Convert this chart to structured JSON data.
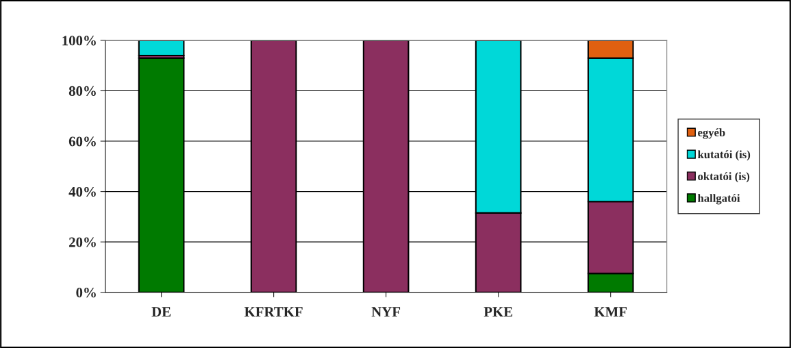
{
  "chart_data": {
    "type": "bar",
    "stacked": true,
    "categories": [
      "DE",
      "KFRTKF",
      "NYF",
      "PKE",
      "KMF"
    ],
    "series": [
      {
        "name": "hallgatói",
        "color": "#007a00",
        "values": [
          93,
          0,
          0,
          0,
          7.5
        ]
      },
      {
        "name": "oktatói (is)",
        "color": "#8b2f5f",
        "values": [
          1,
          100,
          100,
          31.5,
          28.5
        ]
      },
      {
        "name": "kutatói (is)",
        "color": "#00d8d8",
        "values": [
          6,
          0,
          0,
          68.5,
          57
        ]
      },
      {
        "name": "egyéb",
        "color": "#e06010",
        "values": [
          0,
          0,
          0,
          0,
          7
        ]
      }
    ],
    "ylim": [
      0,
      100
    ],
    "yticks": [
      {
        "value": 0,
        "label": "0%"
      },
      {
        "value": 20,
        "label": "20%"
      },
      {
        "value": 40,
        "label": "40%"
      },
      {
        "value": 60,
        "label": "60%"
      },
      {
        "value": 80,
        "label": "80%"
      },
      {
        "value": 100,
        "label": "100%"
      }
    ],
    "grid": "y",
    "legend": "right"
  }
}
